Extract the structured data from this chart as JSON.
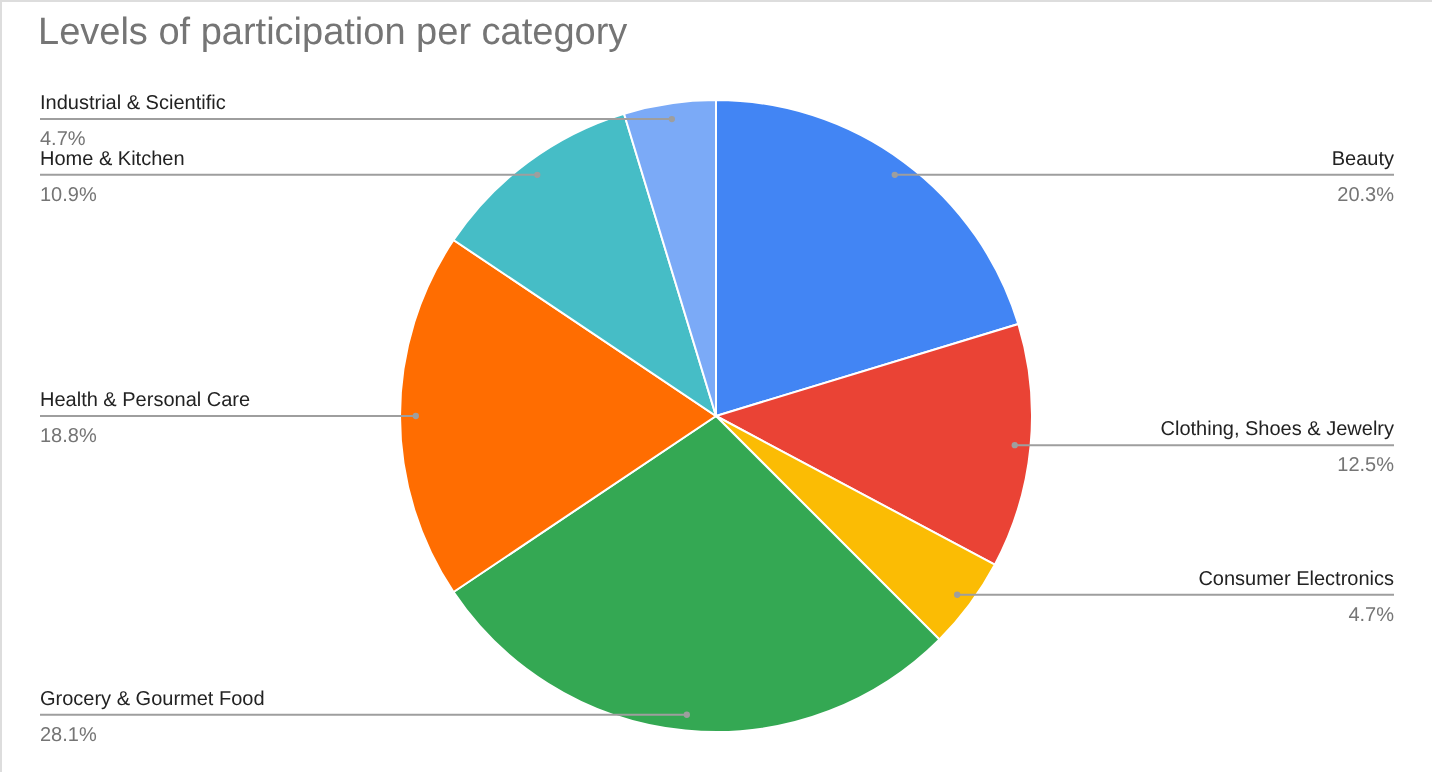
{
  "chart_data": {
    "type": "pie",
    "title": "Levels of participation per category",
    "categories": [
      "Beauty",
      "Clothing, Shoes & Jewelry",
      "Consumer Electronics",
      "Grocery & Gourmet Food",
      "Health & Personal Care",
      "Home & Kitchen",
      "Industrial & Scientific"
    ],
    "values": [
      20.3,
      12.5,
      4.7,
      28.1,
      18.8,
      10.9,
      4.7
    ],
    "value_labels": [
      "20.3%",
      "12.5%",
      "4.7%",
      "28.1%",
      "18.8%",
      "10.9%",
      "4.7%"
    ],
    "colors": [
      "#4285f4",
      "#ea4335",
      "#fbbc04",
      "#34a853",
      "#ff6d01",
      "#46bdc6",
      "#7baaf7"
    ]
  }
}
